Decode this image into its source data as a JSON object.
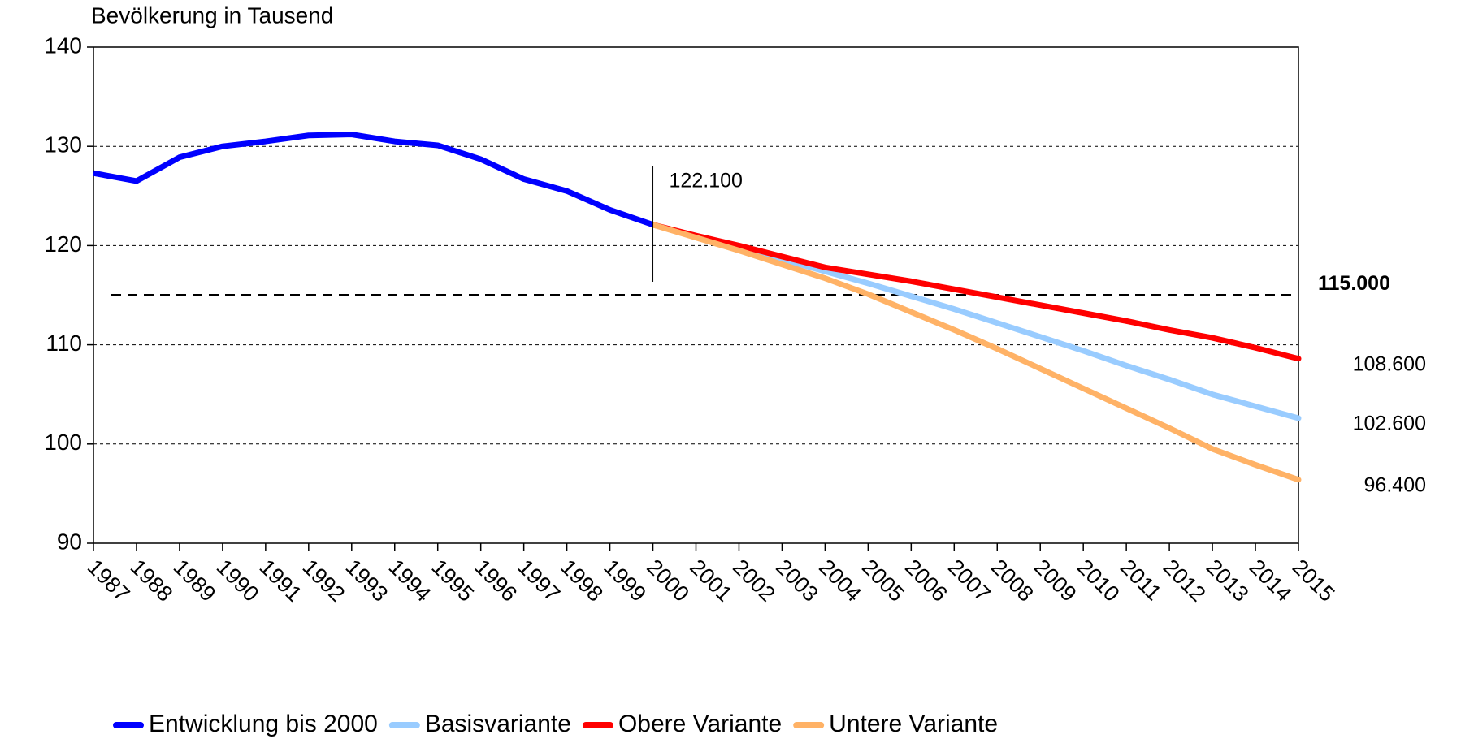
{
  "chart_data": {
    "type": "line",
    "y_label": "Bevölkerung in Tausend",
    "categories": [
      "1987",
      "1988",
      "1989",
      "1990",
      "1991",
      "1992",
      "1993",
      "1994",
      "1995",
      "1996",
      "1997",
      "1998",
      "1999",
      "2000",
      "2001",
      "2002",
      "2003",
      "2004",
      "2005",
      "2006",
      "2007",
      "2008",
      "2009",
      "2010",
      "2011",
      "2012",
      "2013",
      "2014",
      "2015"
    ],
    "series": [
      {
        "name": "Entwicklung bis 2000",
        "color": "#0000ff",
        "values": [
          127.3,
          126.5,
          128.9,
          130.0,
          130.5,
          131.1,
          131.2,
          130.5,
          130.1,
          128.7,
          126.7,
          125.5,
          123.6,
          122.1,
          null,
          null,
          null,
          null,
          null,
          null,
          null,
          null,
          null,
          null,
          null,
          null,
          null,
          null,
          null
        ],
        "value_labels": [
          null,
          null,
          null,
          null,
          null,
          null,
          null,
          null,
          null,
          null,
          null,
          null,
          null,
          "122.100",
          null,
          null,
          null,
          null,
          null,
          null,
          null,
          null,
          null,
          null,
          null,
          null,
          null,
          null,
          null
        ]
      },
      {
        "name": "Basisvariante",
        "color": "#99ccff",
        "values": [
          null,
          null,
          null,
          null,
          null,
          null,
          null,
          null,
          null,
          null,
          null,
          null,
          null,
          122.1,
          120.9,
          119.7,
          118.6,
          117.4,
          116.2,
          114.9,
          113.6,
          112.2,
          110.8,
          109.4,
          107.9,
          106.5,
          105.0,
          103.8,
          102.6
        ],
        "value_labels": [
          null,
          null,
          null,
          null,
          null,
          null,
          null,
          null,
          null,
          null,
          null,
          null,
          null,
          null,
          null,
          null,
          null,
          null,
          null,
          null,
          null,
          null,
          null,
          null,
          null,
          null,
          null,
          null,
          "102.600"
        ]
      },
      {
        "name": "Obere Variante",
        "color": "#ff0000",
        "values": [
          null,
          null,
          null,
          null,
          null,
          null,
          null,
          null,
          null,
          null,
          null,
          null,
          null,
          122.1,
          121.0,
          120.0,
          118.9,
          117.8,
          117.1,
          116.4,
          115.6,
          114.8,
          114.0,
          113.2,
          112.4,
          111.5,
          110.7,
          109.7,
          108.6
        ],
        "value_labels": [
          null,
          null,
          null,
          null,
          null,
          null,
          null,
          null,
          null,
          null,
          null,
          null,
          null,
          null,
          null,
          null,
          null,
          null,
          null,
          null,
          null,
          null,
          null,
          null,
          null,
          null,
          null,
          null,
          "108.600"
        ]
      },
      {
        "name": "Untere Variante",
        "color": "#ffb266",
        "values": [
          null,
          null,
          null,
          null,
          null,
          null,
          null,
          null,
          null,
          null,
          null,
          null,
          null,
          122.1,
          120.8,
          119.5,
          118.1,
          116.7,
          115.1,
          113.3,
          111.5,
          109.6,
          107.6,
          105.6,
          103.6,
          101.6,
          99.5,
          97.9,
          96.4
        ],
        "value_labels": [
          null,
          null,
          null,
          null,
          null,
          null,
          null,
          null,
          null,
          null,
          null,
          null,
          null,
          null,
          null,
          null,
          null,
          null,
          null,
          null,
          null,
          null,
          null,
          null,
          null,
          null,
          null,
          null,
          "96.400"
        ]
      }
    ],
    "reference_line": {
      "value": 115,
      "label": "115.000"
    },
    "ylim": [
      90,
      140
    ],
    "yticks": [
      90,
      100,
      110,
      120,
      130,
      140
    ],
    "grid": true
  }
}
